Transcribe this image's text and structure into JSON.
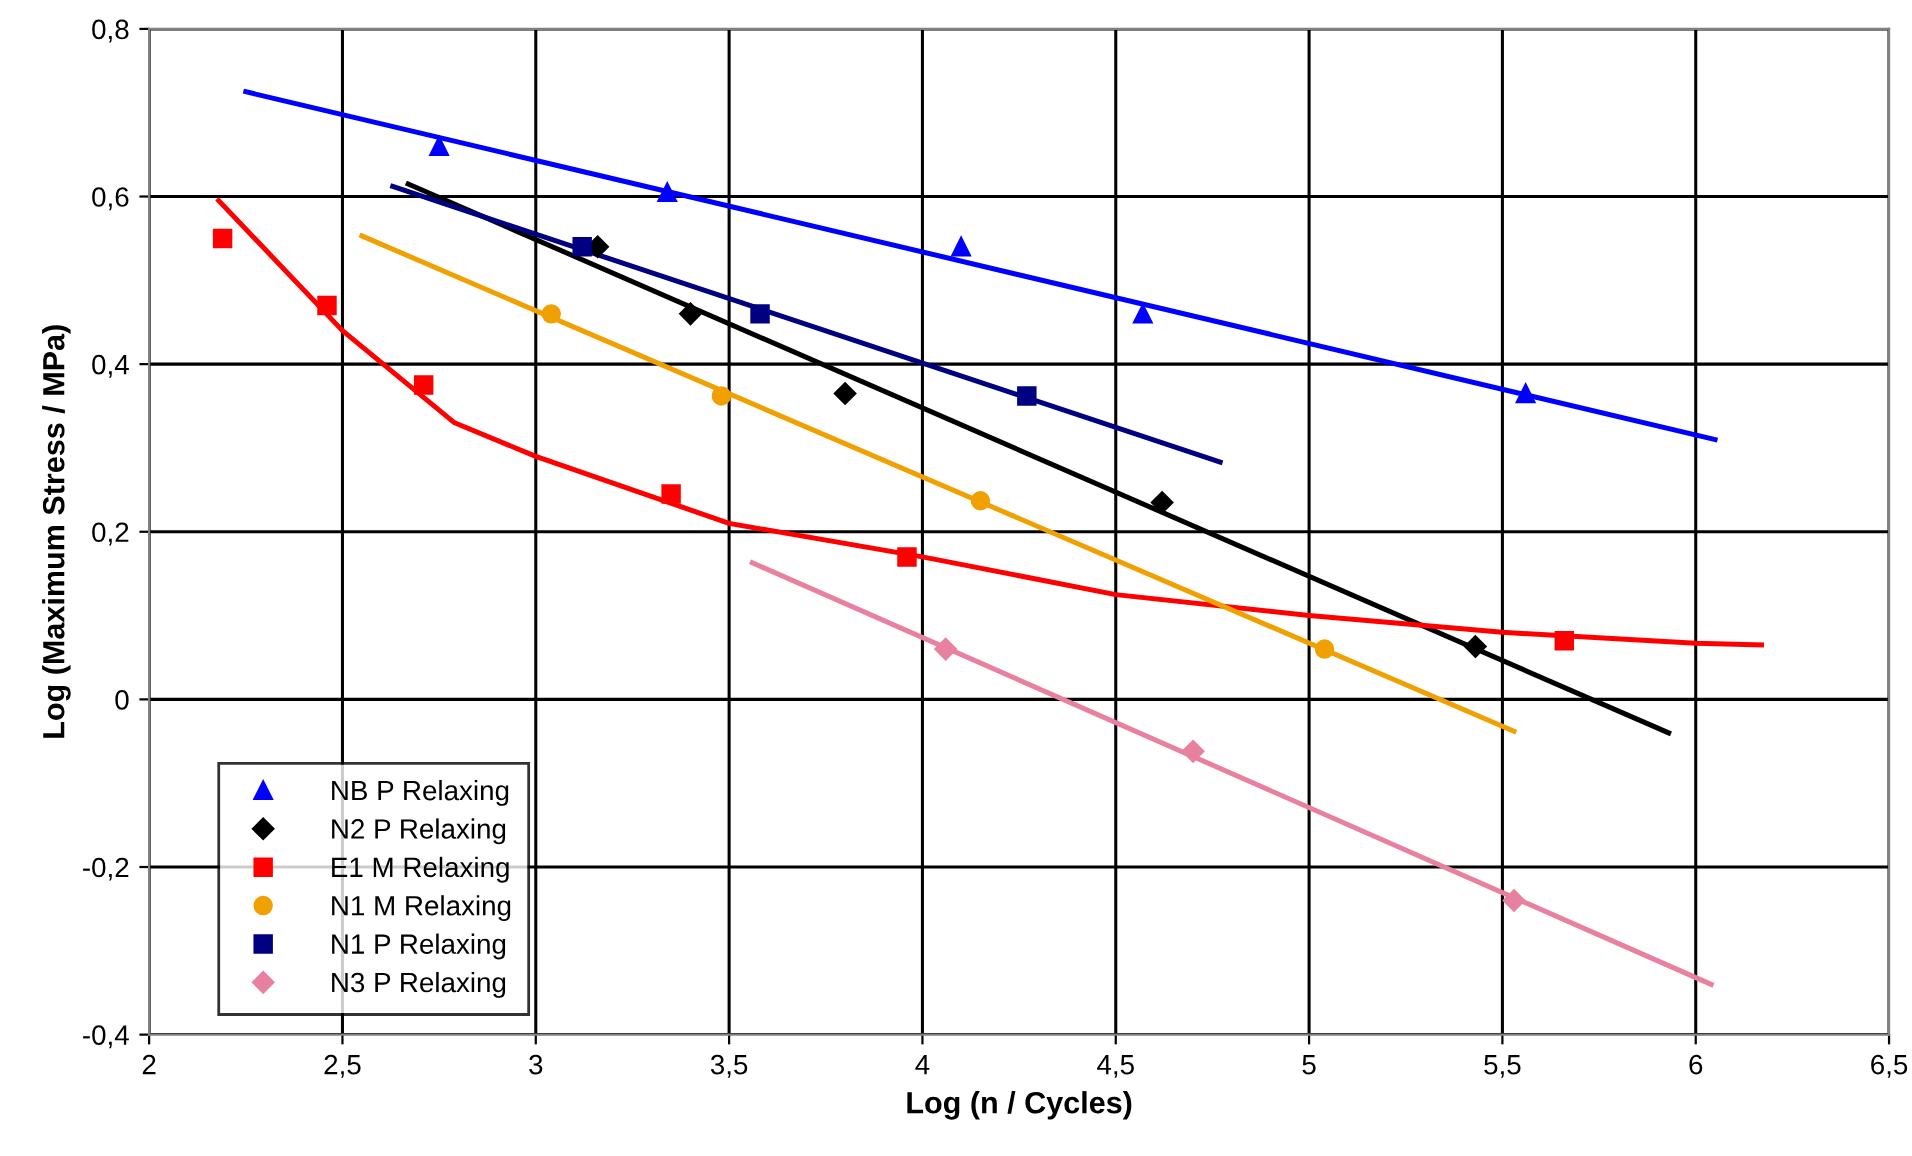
{
  "chart_data": {
    "type": "scatter",
    "xlabel": "Log (n / Cycles)",
    "ylabel": "Log (Maximum Stress / MPa)",
    "xlim": [
      2,
      6.5
    ],
    "ylim": [
      -0.4,
      0.8
    ],
    "xticks": [
      2,
      {
        "value": 2.5,
        "label": "2,5"
      },
      3,
      {
        "value": 3.5,
        "label": "3,5"
      },
      4,
      {
        "value": 4.5,
        "label": "4,5"
      },
      5,
      {
        "value": 5.5,
        "label": "5,5"
      },
      6,
      {
        "value": 6.5,
        "label": "6,5"
      }
    ],
    "yticks": [
      {
        "value": -0.4,
        "label": "-0,4"
      },
      {
        "value": -0.2,
        "label": "-0,2"
      },
      0,
      {
        "value": 0.2,
        "label": "0,2"
      },
      {
        "value": 0.4,
        "label": "0,4"
      },
      {
        "value": 0.6,
        "label": "0,6"
      },
      {
        "value": 0.8,
        "label": "0,8"
      }
    ],
    "grid": true,
    "legend": "bottom left",
    "series": [
      {
        "name": "NB P Relaxing",
        "color": "#0000ff",
        "marker": "triangle",
        "x": [
          2.75,
          3.34,
          4.1,
          4.57,
          5.56
        ],
        "values": [
          0.66,
          0.605,
          0.54,
          0.46,
          0.365
        ]
      },
      {
        "name": "N2 P Relaxing",
        "color": "#000000",
        "marker": "diamond",
        "x": [
          3.16,
          3.4,
          3.8,
          4.62,
          5.43
        ],
        "values": [
          0.54,
          0.46,
          0.365,
          0.235,
          0.063
        ]
      },
      {
        "name": "E1 M Relaxing",
        "color": "#ff0000",
        "marker": "square",
        "x": [
          2.19,
          2.46,
          2.71,
          3.35,
          3.96,
          5.66
        ],
        "values": [
          0.55,
          0.47,
          0.375,
          0.245,
          0.17,
          0.07
        ]
      },
      {
        "name": "N1 M Relaxing",
        "color": "#f0a000",
        "marker": "circle",
        "x": [
          3.04,
          3.48,
          4.15,
          5.04
        ],
        "values": [
          0.46,
          0.362,
          0.237,
          0.06
        ]
      },
      {
        "name": "N1 P Relaxing",
        "color": "#000080",
        "marker": "square",
        "x": [
          3.12,
          3.58,
          4.27
        ],
        "values": [
          0.54,
          0.46,
          0.362
        ]
      },
      {
        "name": "N3 P Relaxing",
        "color": "#e880a0",
        "marker": "diamond",
        "x": [
          4.06,
          4.7,
          5.53
        ],
        "values": [
          0.06,
          -0.062,
          -0.24
        ]
      },
      {
        "type": "line",
        "color": "#0000ff",
        "x": [
          2.25,
          6.05
        ],
        "values": [
          0.725,
          0.31
        ]
      },
      {
        "type": "line",
        "color": "#000000",
        "x": [
          2.67,
          5.93
        ],
        "values": [
          0.615,
          -0.04
        ]
      },
      {
        "type": "line",
        "color": "#ff0000",
        "x": [
          2.18,
          2.5,
          2.79,
          3.0,
          3.5,
          4.0,
          4.5,
          5.0,
          5.5,
          6.0,
          6.17
        ],
        "values": [
          0.595,
          0.44,
          0.33,
          0.29,
          0.21,
          0.17,
          0.125,
          0.1,
          0.08,
          0.067,
          0.065
        ]
      },
      {
        "type": "line",
        "color": "#f0a000",
        "x": [
          2.55,
          5.53
        ],
        "values": [
          0.553,
          -0.038
        ]
      },
      {
        "type": "line",
        "color": "#000080",
        "x": [
          2.63,
          4.77
        ],
        "values": [
          0.612,
          0.283
        ]
      },
      {
        "type": "line",
        "color": "#e880a0",
        "x": [
          3.56,
          6.04
        ],
        "values": [
          0.163,
          -0.34
        ]
      }
    ]
  }
}
